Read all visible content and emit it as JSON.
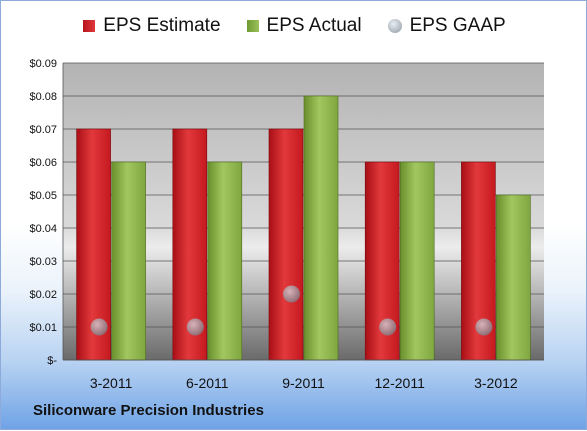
{
  "chart_data": {
    "type": "bar",
    "title": "",
    "xlabel": "",
    "ylabel": "",
    "categories": [
      "3-2011",
      "6-2011",
      "9-2011",
      "12-2011",
      "3-2012"
    ],
    "series": [
      {
        "name": "EPS Estimate",
        "kind": "bar",
        "color": "#d9262b",
        "values": [
          0.07,
          0.07,
          0.07,
          0.06,
          0.06
        ]
      },
      {
        "name": "EPS Actual",
        "kind": "bar",
        "color": "#8bb14a",
        "values": [
          0.06,
          0.06,
          0.08,
          0.06,
          0.05
        ]
      },
      {
        "name": "EPS GAAP",
        "kind": "scatter",
        "color": "#9aa3ad",
        "values": [
          0.01,
          0.01,
          0.02,
          0.01,
          0.01
        ]
      }
    ],
    "ylim": [
      0,
      0.09
    ],
    "yticks": [
      0,
      0.01,
      0.02,
      0.03,
      0.04,
      0.05,
      0.06,
      0.07,
      0.08,
      0.09
    ],
    "ytick_labels": [
      "$-",
      "$0.01",
      "$0.02",
      "$0.03",
      "$0.04",
      "$0.05",
      "$0.06",
      "$0.07",
      "$0.08",
      "$0.09"
    ],
    "grid": true,
    "legend": "top"
  },
  "footer": {
    "company": "Siliconware Precision Industries"
  }
}
